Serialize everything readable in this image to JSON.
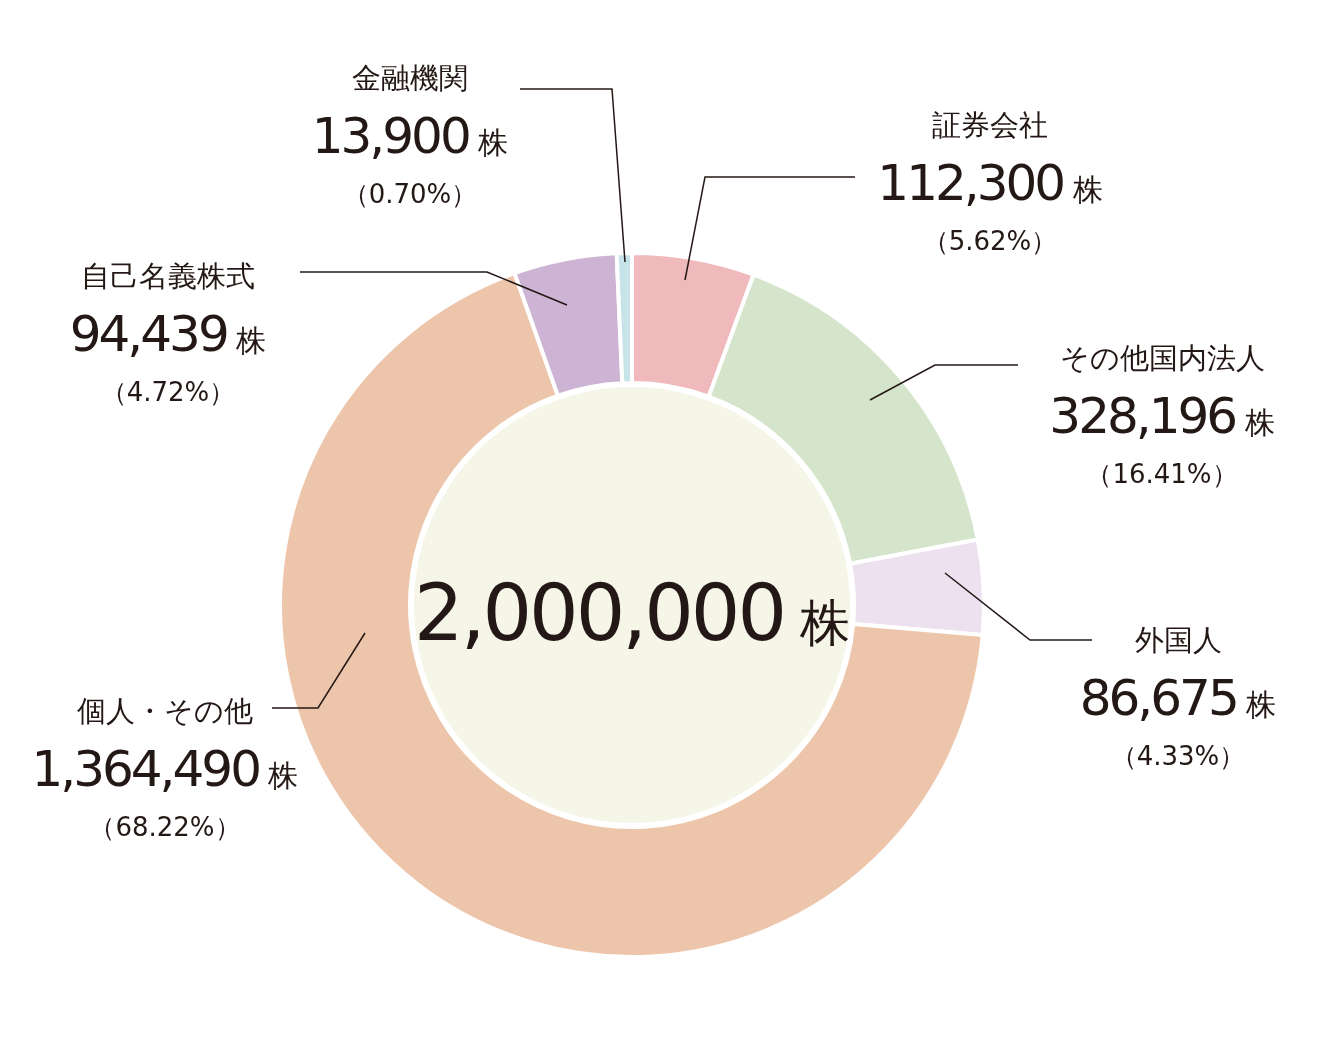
{
  "chart_data": {
    "type": "donut",
    "categories": [
      "証券会社",
      "その他国内法人",
      "外国人",
      "個人・その他",
      "自己名義株式",
      "金融機関"
    ],
    "values": [
      112300,
      328196,
      86675,
      1364490,
      94439,
      13900
    ],
    "colors": [
      "#f0b9bc",
      "#d5e5cb",
      "#ede1ef",
      "#edc5aa",
      "#cdb3d4",
      "#c5e3e8"
    ],
    "value_labels": [
      "112,300 株（5.62%）",
      "328,196 株（16.41%）",
      "86,675 株（4.33%）",
      "1,364,490 株（68.22%）",
      "94,439 株（4.72%）",
      "13,900 株（0.70%）"
    ],
    "annotations": [
      "2,000,000 株"
    ]
  }
}
